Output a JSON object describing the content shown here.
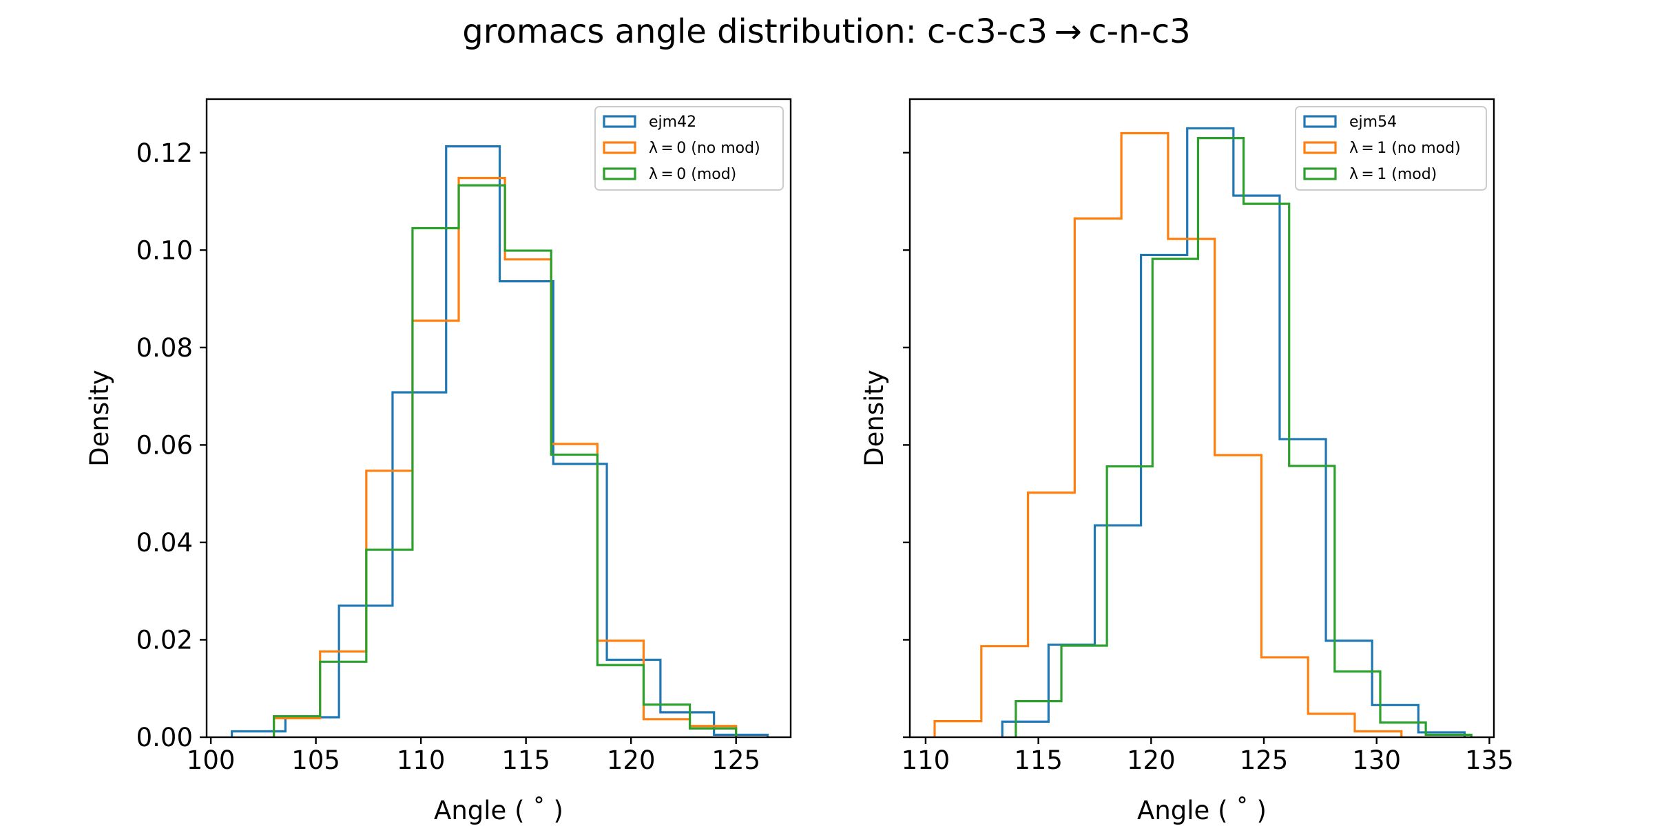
{
  "figure": {
    "title": "gromacs angle distribution: c-c3-c3 → c-n-c3"
  },
  "chart_data": [
    {
      "type": "histogram",
      "xlabel": "Angle ($^\\circ$)",
      "xlabel_display": "Angle ( ˚ )",
      "ylabel": "Density",
      "xlim": [
        99.8,
        127.6
      ],
      "ylim": [
        0,
        0.131
      ],
      "xticks": [
        100,
        105,
        110,
        115,
        120,
        125
      ],
      "yticks": [
        0.0,
        0.02,
        0.04,
        0.06,
        0.08,
        0.1,
        0.12
      ],
      "ytick_labels": [
        "0.00",
        "0.02",
        "0.04",
        "0.06",
        "0.08",
        "0.10",
        "0.12"
      ],
      "show_ytick_labels": true,
      "grid": false,
      "legend_position": "top-right",
      "series": [
        {
          "name": "ejm42",
          "color": "#1f77b4",
          "edges": [
            101.0,
            103.55,
            106.1,
            108.65,
            111.2,
            113.75,
            116.3,
            118.85,
            121.4,
            123.95,
            126.5
          ],
          "values": [
            0.0012,
            0.0041,
            0.027,
            0.0708,
            0.1213,
            0.0936,
            0.0561,
            0.0159,
            0.0051,
            0.0005
          ]
        },
        {
          "name": "λ = 0 (no mod)",
          "color": "#ff7f0e",
          "edges": [
            103.0,
            105.2,
            107.4,
            109.6,
            111.8,
            114.0,
            116.2,
            118.4,
            120.6,
            122.8,
            125.0
          ],
          "values": [
            0.0039,
            0.0176,
            0.0547,
            0.0855,
            0.1148,
            0.0981,
            0.0602,
            0.0198,
            0.0037,
            0.0023
          ]
        },
        {
          "name": "λ = 0 (mod)",
          "color": "#2ca02c",
          "edges": [
            103.0,
            105.2,
            107.4,
            109.6,
            111.8,
            114.0,
            116.2,
            118.4,
            120.6,
            122.8,
            125.0
          ],
          "values": [
            0.0043,
            0.0155,
            0.0385,
            0.1045,
            0.1133,
            0.0999,
            0.058,
            0.0148,
            0.0067,
            0.0018
          ]
        }
      ]
    },
    {
      "type": "histogram",
      "xlabel": "Angle ($^\\circ$)",
      "xlabel_display": "Angle ( ˚ )",
      "ylabel": "Density",
      "xlim": [
        109.3,
        135.2
      ],
      "ylim": [
        0,
        0.131
      ],
      "xticks": [
        110,
        115,
        120,
        125,
        130,
        135
      ],
      "yticks": [
        0.0,
        0.02,
        0.04,
        0.06,
        0.08,
        0.1,
        0.12
      ],
      "ytick_labels": [
        "",
        "",
        "",
        "",
        "",
        "",
        ""
      ],
      "show_ytick_labels": false,
      "grid": false,
      "legend_position": "top-right",
      "series": [
        {
          "name": "ejm54",
          "color": "#1f77b4",
          "edges": [
            113.4,
            115.45,
            117.5,
            119.55,
            121.6,
            123.65,
            125.7,
            127.75,
            129.8,
            131.85,
            133.9
          ],
          "values": [
            0.0032,
            0.019,
            0.0435,
            0.099,
            0.125,
            0.1112,
            0.0612,
            0.0198,
            0.0066,
            0.001
          ]
        },
        {
          "name": "λ = 1 (no mod)",
          "color": "#ff7f0e",
          "edges": [
            110.4,
            112.47,
            114.54,
            116.61,
            118.68,
            120.75,
            122.82,
            124.89,
            126.96,
            129.03,
            131.1
          ],
          "values": [
            0.0033,
            0.0187,
            0.0502,
            0.1065,
            0.124,
            0.1023,
            0.0579,
            0.0164,
            0.0048,
            0.0012
          ]
        },
        {
          "name": "λ = 1 (mod)",
          "color": "#2ca02c",
          "edges": [
            114.0,
            116.02,
            118.04,
            120.06,
            122.08,
            124.1,
            126.12,
            128.14,
            130.16,
            132.18,
            134.2
          ],
          "values": [
            0.0074,
            0.0188,
            0.0556,
            0.0982,
            0.123,
            0.1095,
            0.0557,
            0.0135,
            0.003,
            0.0005
          ]
        }
      ]
    }
  ]
}
